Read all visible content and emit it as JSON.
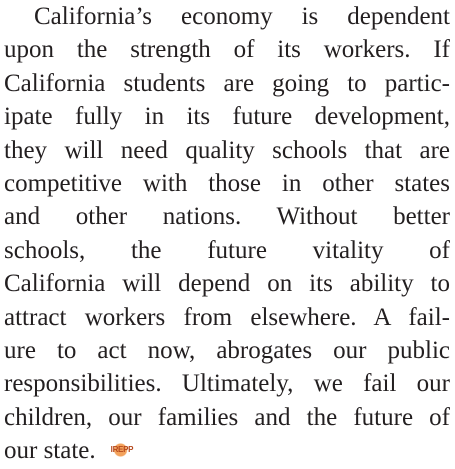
{
  "paragraph": {
    "lines": [
      "California’s economy is dependent",
      "upon the strength of its workers. If",
      "California students are going to partic-",
      "ipate fully in its future development,",
      "they will need quality schools that are",
      "competitive with those in other states",
      "and other nations. Without better",
      "schools, the future vitality of",
      "California will depend on its ability to",
      "attract workers from elsewhere. A fail-",
      "ure to act now, abrogates our public",
      "responsibilities. Ultimately, we fail our",
      "children, our families and the future of",
      "our state."
    ],
    "logo": "IREPP"
  }
}
